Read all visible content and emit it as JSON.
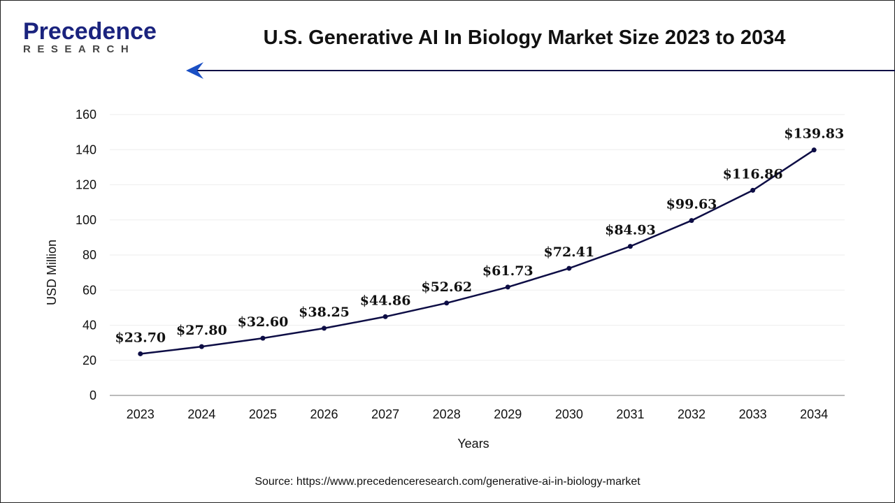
{
  "header": {
    "logo_text": "Precedence",
    "logo_subtext": "RESEARCH",
    "title": "U.S. Generative AI In Biology Market Size 2023 to 2034"
  },
  "source": "Source: https://www.precedenceresearch.com/generative-ai-in-biology-market",
  "colors": {
    "line": "#0d0d45",
    "accent": "#1a237e",
    "grid": "#eeeeee",
    "axis": "#bbbbbb"
  },
  "chart_data": {
    "type": "line",
    "title": "U.S. Generative AI In Biology Market Size 2023 to 2034",
    "xlabel": "Years",
    "ylabel": "USD Million",
    "ylim": [
      0,
      160
    ],
    "yticks": [
      0,
      20,
      40,
      60,
      80,
      100,
      120,
      140,
      160
    ],
    "grid": true,
    "categories": [
      "2023",
      "2024",
      "2025",
      "2026",
      "2027",
      "2028",
      "2029",
      "2030",
      "2031",
      "2032",
      "2033",
      "2034"
    ],
    "values": [
      23.7,
      27.8,
      32.6,
      38.25,
      44.86,
      52.62,
      61.73,
      72.41,
      84.93,
      99.63,
      116.86,
      139.83
    ],
    "data_labels": [
      "$23.70",
      "$27.80",
      "$32.60",
      "$38.25",
      "$44.86",
      "$52.62",
      "$61.73",
      "$72.41",
      "$84.93",
      "$99.63",
      "$116.86",
      "$139.83"
    ]
  }
}
